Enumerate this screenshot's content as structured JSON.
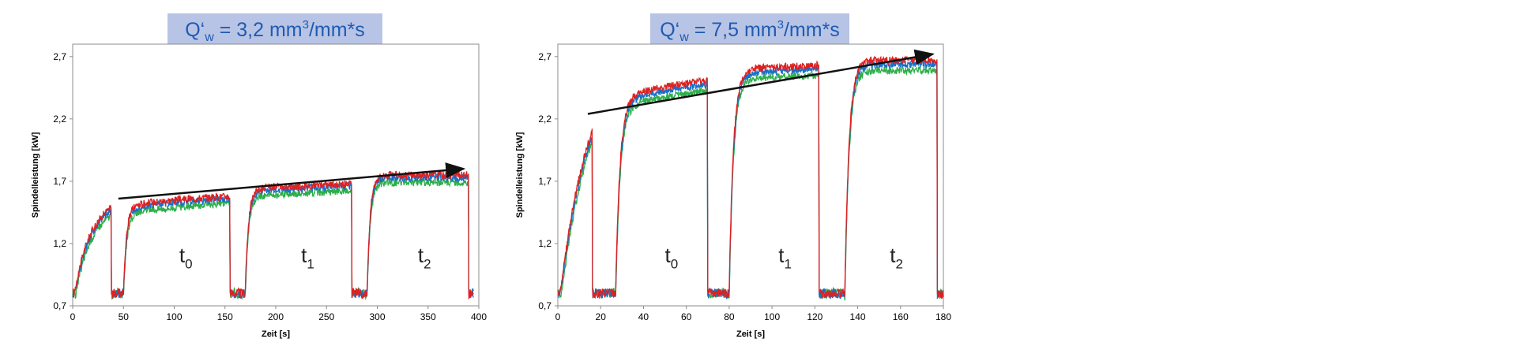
{
  "chart_data": [
    {
      "type": "line",
      "title": "Q‘w = 3,2 mm³/mm*s",
      "title_parts": {
        "main": "Q‘",
        "sub": "w",
        "mid": " = 3,2 mm",
        "sup": "3",
        "end": "/mm*s"
      },
      "xlabel": "Zeit [s]",
      "ylabel": "Spindelleistung [kW]",
      "xlim": [
        0,
        400
      ],
      "ylim": [
        0.7,
        2.8
      ],
      "xticks": [
        "0",
        "50",
        "100",
        "150",
        "200",
        "250",
        "300",
        "350",
        "400"
      ],
      "yticks": [
        "0,7",
        "1,2",
        "1,7",
        "2,2",
        "2,7"
      ],
      "grid": false,
      "colors": [
        "#e02020",
        "#1a6fc9",
        "#2cae4a"
      ],
      "annotations": [
        {
          "label": "t",
          "sub": "0",
          "x": 105,
          "y": 1.05
        },
        {
          "label": "t",
          "sub": "1",
          "x": 225,
          "y": 1.05
        },
        {
          "label": "t",
          "sub": "2",
          "x": 340,
          "y": 1.05
        }
      ],
      "trend_arrow": {
        "from": [
          45,
          1.56
        ],
        "to": [
          385,
          1.8
        ]
      },
      "segments": [
        {
          "on": 2,
          "off": 38,
          "start": 1.05,
          "end": 1.48,
          "rise": 8
        },
        {
          "on": 50,
          "off": 155,
          "start": 1.46,
          "end": 1.56,
          "rise": 3
        },
        {
          "on": 170,
          "off": 275,
          "start": 1.6,
          "end": 1.66,
          "rise": 3
        },
        {
          "on": 290,
          "off": 390,
          "start": 1.73,
          "end": 1.73,
          "rise": 3
        }
      ],
      "series": [
        {
          "offset": 0.02
        },
        {
          "offset": 0.0
        },
        {
          "offset": -0.04
        }
      ],
      "idle_level": 0.8,
      "x_end": 395
    },
    {
      "type": "line",
      "title": "Q‘w = 7,5 mm³/mm*s",
      "title_parts": {
        "main": "Q‘",
        "sub": "w",
        "mid": " = 7,5 mm",
        "sup": "3",
        "end": "/mm*s"
      },
      "xlabel": "Zeit [s]",
      "ylabel": "Spindelleistung [kW]",
      "xlim": [
        0,
        180
      ],
      "ylim": [
        0.7,
        2.8
      ],
      "xticks": [
        "0",
        "20",
        "40",
        "60",
        "80",
        "100",
        "120",
        "140",
        "160",
        "180"
      ],
      "yticks": [
        "0,7",
        "1,2",
        "1,7",
        "2,2",
        "2,7"
      ],
      "grid": false,
      "colors": [
        "#e02020",
        "#1a6fc9",
        "#2cae4a"
      ],
      "annotations": [
        {
          "label": "t",
          "sub": "0",
          "x": 50,
          "y": 1.05
        },
        {
          "label": "t",
          "sub": "1",
          "x": 103,
          "y": 1.05
        },
        {
          "label": "t",
          "sub": "2",
          "x": 155,
          "y": 1.05
        }
      ],
      "trend_arrow": {
        "from": [
          14,
          2.24
        ],
        "to": [
          175,
          2.72
        ]
      },
      "segments": [
        {
          "on": 1,
          "off": 16,
          "start": 1.2,
          "end": 2.18,
          "rise": 6
        },
        {
          "on": 27,
          "off": 70,
          "start": 2.28,
          "end": 2.48,
          "rise": 2
        },
        {
          "on": 80,
          "off": 122,
          "start": 2.55,
          "end": 2.6,
          "rise": 2
        },
        {
          "on": 134,
          "off": 177,
          "start": 2.64,
          "end": 2.64,
          "rise": 2
        }
      ],
      "series": [
        {
          "offset": 0.03
        },
        {
          "offset": 0.0
        },
        {
          "offset": -0.05
        }
      ],
      "idle_level": 0.8,
      "x_end": 180
    }
  ]
}
